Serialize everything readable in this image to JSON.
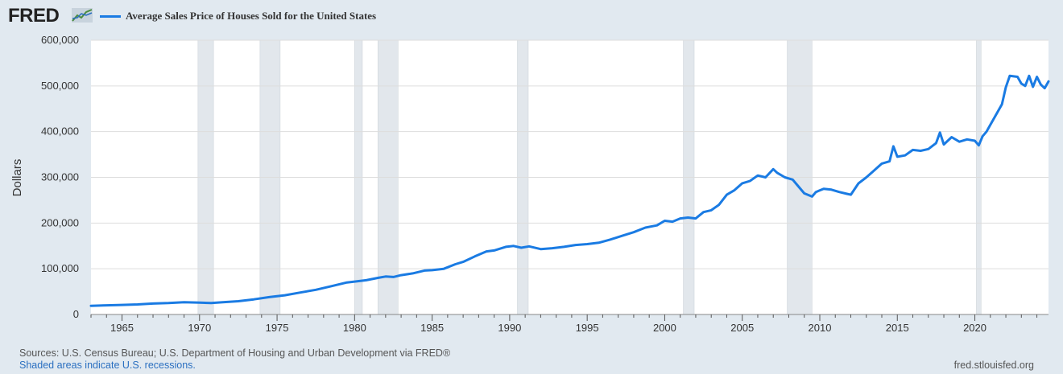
{
  "header": {
    "logo": "FRED",
    "legend_label": "Average Sales Price of Houses Sold for the United States",
    "series_color": "#1a7be3"
  },
  "footer": {
    "sources": "Sources: U.S. Census Bureau; U.S. Department of Housing and Urban Development via FRED®",
    "recessions_note": "Shaded areas indicate U.S. recessions.",
    "url": "fred.stlouisfed.org"
  },
  "chart_data": {
    "type": "line",
    "title": "",
    "xlabel": "",
    "ylabel": "Dollars",
    "xlim": [
      1963.0,
      2024.75
    ],
    "ylim": [
      0,
      600000
    ],
    "grid": true,
    "y_ticks": [
      0,
      100000,
      200000,
      300000,
      400000,
      500000,
      600000
    ],
    "y_tick_labels": [
      "0",
      "100,000",
      "200,000",
      "300,000",
      "400,000",
      "500,000",
      "600,000"
    ],
    "x_ticks": [
      1965,
      1970,
      1975,
      1980,
      1985,
      1990,
      1995,
      2000,
      2005,
      2010,
      2015,
      2020
    ],
    "x_tick_labels": [
      "1965",
      "1970",
      "1975",
      "1980",
      "1985",
      "1990",
      "1995",
      "2000",
      "2005",
      "2010",
      "2015",
      "2020"
    ],
    "recessions": [
      [
        1969.9,
        1970.9
      ],
      [
        1973.9,
        1975.2
      ],
      [
        1980.0,
        1980.5
      ],
      [
        1981.5,
        1982.8
      ],
      [
        1990.5,
        1991.2
      ],
      [
        2001.2,
        2001.9
      ],
      [
        2007.9,
        2009.5
      ],
      [
        2020.1,
        2020.4
      ]
    ],
    "series": [
      {
        "color": "#1a7be3",
        "x": [
          1963.0,
          1964.0,
          1965.0,
          1966.0,
          1967.0,
          1968.0,
          1969.0,
          1970.0,
          1970.75,
          1971.5,
          1972.5,
          1973.5,
          1974.5,
          1975.5,
          1976.5,
          1977.5,
          1978.5,
          1979.5,
          1980.0,
          1980.75,
          1981.5,
          1982.0,
          1982.5,
          1983.0,
          1983.75,
          1984.5,
          1985.0,
          1985.75,
          1986.5,
          1987.0,
          1987.75,
          1988.5,
          1989.0,
          1989.75,
          1990.25,
          1990.75,
          1991.25,
          1992.0,
          1992.75,
          1993.5,
          1994.25,
          1995.0,
          1995.75,
          1996.5,
          1997.25,
          1998.0,
          1998.75,
          1999.5,
          2000.0,
          2000.5,
          2001.0,
          2001.5,
          2002.0,
          2002.5,
          2003.0,
          2003.5,
          2004.0,
          2004.5,
          2005.0,
          2005.5,
          2006.0,
          2006.5,
          2007.0,
          2007.25,
          2007.75,
          2008.25,
          2008.5,
          2009.0,
          2009.5,
          2009.75,
          2010.25,
          2010.75,
          2011.25,
          2011.75,
          2012.0,
          2012.5,
          2013.0,
          2013.5,
          2014.0,
          2014.5,
          2014.75,
          2015.0,
          2015.5,
          2016.0,
          2016.5,
          2017.0,
          2017.5,
          2017.75,
          2018.0,
          2018.5,
          2019.0,
          2019.5,
          2020.0,
          2020.25,
          2020.5,
          2020.75,
          2021.0,
          2021.5,
          2021.75,
          2022.0,
          2022.25,
          2022.75,
          2023.0,
          2023.25,
          2023.5,
          2023.75,
          2024.0,
          2024.25,
          2024.5,
          2024.75
        ],
        "values": [
          19000,
          20000,
          21000,
          22000,
          24000,
          25000,
          27000,
          26000,
          25000,
          27000,
          29000,
          33000,
          38000,
          42000,
          48000,
          54000,
          62000,
          70000,
          72000,
          75000,
          80000,
          83000,
          82000,
          86000,
          90000,
          96000,
          97000,
          100000,
          110000,
          115000,
          127000,
          138000,
          140000,
          148000,
          150000,
          146000,
          149000,
          143000,
          145000,
          148000,
          152000,
          154000,
          157000,
          164000,
          172000,
          180000,
          190000,
          195000,
          205000,
          203000,
          210000,
          212000,
          210000,
          224000,
          228000,
          240000,
          262000,
          272000,
          287000,
          292000,
          304000,
          300000,
          318000,
          310000,
          300000,
          295000,
          285000,
          265000,
          258000,
          268000,
          275000,
          273000,
          268000,
          264000,
          262000,
          287000,
          300000,
          315000,
          330000,
          335000,
          368000,
          345000,
          348000,
          360000,
          358000,
          362000,
          375000,
          398000,
          372000,
          388000,
          378000,
          383000,
          380000,
          370000,
          390000,
          400000,
          415000,
          445000,
          460000,
          497000,
          522000,
          520000,
          505000,
          500000,
          522000,
          498000,
          520000,
          503000,
          495000,
          510000
        ]
      }
    ]
  }
}
